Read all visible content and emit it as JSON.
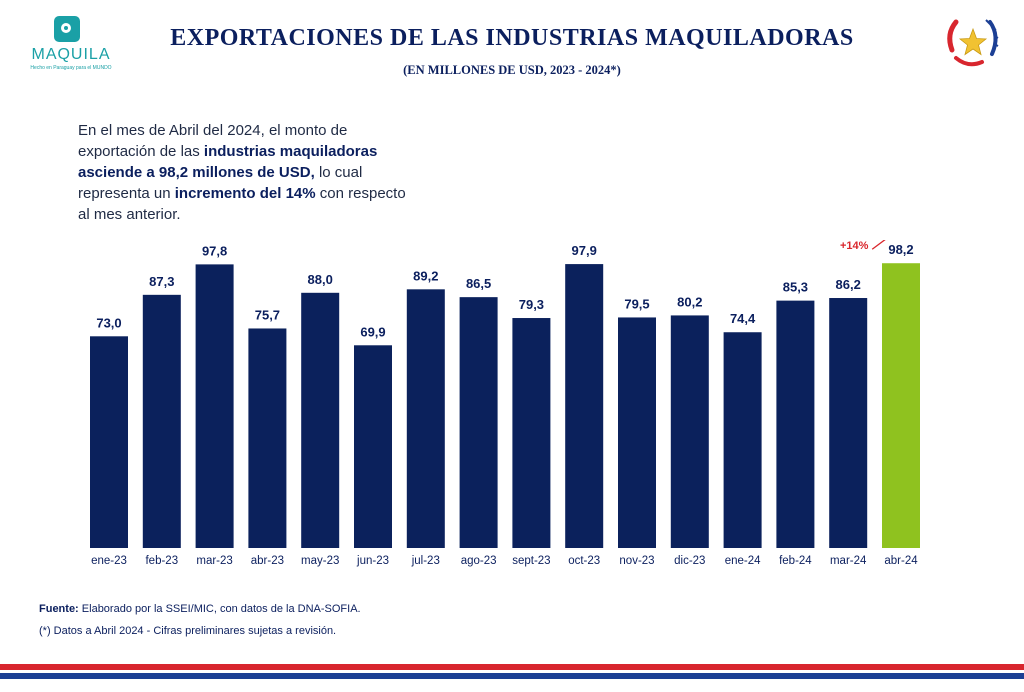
{
  "header": {
    "title": "EXPORTACIONES DE LAS INDUSTRIAS MAQUILADORAS",
    "subtitle": "(EN MILLONES DE USD, 2023 - 2024*)"
  },
  "logo": {
    "word": "MAQUILA",
    "tagline": "Hecho en Paraguay para el MUNDO",
    "icon": "camera-icon"
  },
  "seal": {
    "icon": "paraguay-seal-icon"
  },
  "description": {
    "p1": "En el mes de Abril del 2024, el monto de exportación de las ",
    "b1": "industrias maquiladoras asciende a 98,2 millones de USD,",
    "p2": " lo cual representa un ",
    "b2": "incremento del 14%",
    "p3": " con respecto al mes anterior."
  },
  "chart_data": {
    "type": "bar",
    "categories": [
      "ene-23",
      "feb-23",
      "mar-23",
      "abr-23",
      "may-23",
      "jun-23",
      "jul-23",
      "ago-23",
      "sept-23",
      "oct-23",
      "nov-23",
      "dic-23",
      "ene-24",
      "feb-24",
      "mar-24",
      "abr-24"
    ],
    "values": [
      73.0,
      87.3,
      97.8,
      75.7,
      88.0,
      69.9,
      89.2,
      86.5,
      79.3,
      97.9,
      79.5,
      80.2,
      74.4,
      85.3,
      86.2,
      98.2
    ],
    "value_labels": [
      "73,0",
      "87,3",
      "97,8",
      "75,7",
      "88,0",
      "69,9",
      "89,2",
      "86,5",
      "79,3",
      "97,9",
      "79,5",
      "80,2",
      "74,4",
      "85,3",
      "86,2",
      "98,2"
    ],
    "ylim": [
      0,
      100
    ],
    "grid": false,
    "colors": {
      "default": "#0b215c",
      "highlight": "#8fc21f",
      "annotation": "#d9252b"
    },
    "highlight_index": 15,
    "annotation": {
      "text": "+14%",
      "from_index": 14,
      "to_index": 15
    }
  },
  "footer": {
    "source_label": "Fuente:",
    "source_text": " Elaborado por la SSEI/MIC, con datos de la DNA-SOFIA.",
    "note": "(*) Datos a Abril 2024 - Cifras preliminares sujetas a revisión."
  },
  "colors": {
    "navy": "#0b1f5e",
    "teal": "#1aa0a6",
    "green": "#8fc21f",
    "red": "#d8262e",
    "blue": "#1c3f94"
  }
}
